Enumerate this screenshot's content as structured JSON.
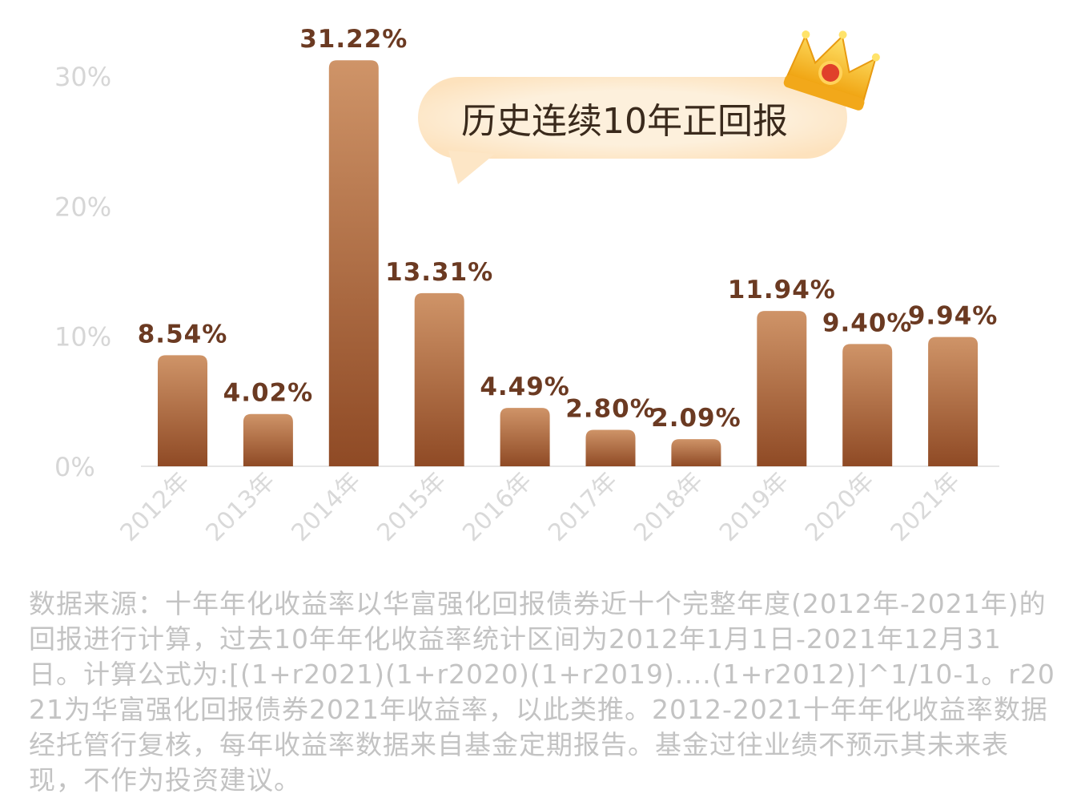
{
  "chart_data": {
    "type": "bar",
    "categories": [
      "2012年",
      "2013年",
      "2014年",
      "2015年",
      "2016年",
      "2017年",
      "2018年",
      "2019年",
      "2020年",
      "2021年"
    ],
    "values": [
      8.54,
      4.02,
      31.22,
      13.31,
      4.49,
      2.8,
      2.09,
      11.94,
      9.4,
      9.94
    ],
    "value_labels": [
      "8.54%",
      "4.02%",
      "31.22%",
      "13.31%",
      "4.49%",
      "2.80%",
      "2.09%",
      "11.94%",
      "9.40%",
      "9.94%"
    ],
    "yticks": [
      "0%",
      "10%",
      "20%",
      "30%"
    ],
    "ytick_values": [
      0,
      10,
      20,
      30
    ],
    "ylim": [
      0,
      30
    ],
    "grid": false,
    "bar_color": "#a9633a",
    "title": "",
    "xlabel": "",
    "ylabel": ""
  },
  "callout": {
    "text": "历史连续10年正回报"
  },
  "footnote": "数据来源：十年年化收益率以华富强化回报债券近十个完整年度(2012年-2021年)的回报进行计算，过去10年年化收益率统计区间为2012年1月1日-2021年12月31日。计算公式为:[(1+r2021)(1+r2020)(1+r2019)....(1+r2012)]^1/10-1。r2021为华富强化回报债券2021年收益率，以此类推。2012-2021十年年化收益率数据经托管行复核，每年收益率数据来自基金定期报告。基金过往业绩不预示其未来表现，不作为投资建议。",
  "colors": {
    "bar_top": "#cf9468",
    "bar_bottom": "#8f4a25",
    "value_text": "#6b3a22",
    "callout_bg": "#fdf0dc",
    "crown": "#f6b620"
  }
}
